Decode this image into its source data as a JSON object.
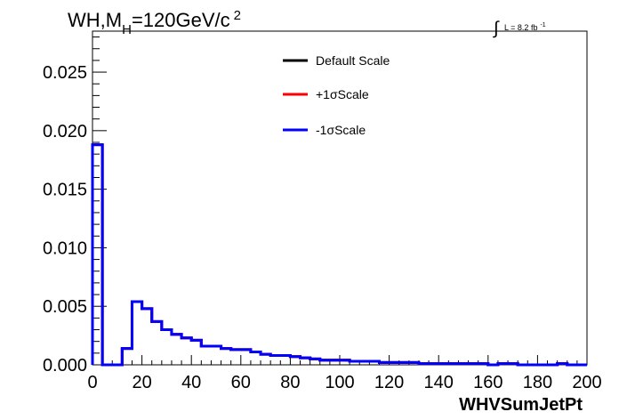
{
  "chart_data": {
    "type": "line",
    "title_parts": {
      "main": "WH,M",
      "sub": "H",
      "rest": "=120GeV/c",
      "sup": "2"
    },
    "lumi_label": {
      "integral": "∫",
      "text": "L = 8.2 fb",
      "sup": "-1"
    },
    "xlabel": "WHVSumJetPt",
    "ylabel": "",
    "xlim": [
      0,
      200
    ],
    "ylim": [
      0,
      0.0285
    ],
    "x_ticks": [
      {
        "value": 0,
        "label": "0"
      },
      {
        "value": 20,
        "label": "20"
      },
      {
        "value": 40,
        "label": "40"
      },
      {
        "value": 60,
        "label": "60"
      },
      {
        "value": 80,
        "label": "80"
      },
      {
        "value": 100,
        "label": "100"
      },
      {
        "value": 120,
        "label": "120"
      },
      {
        "value": 140,
        "label": "140"
      },
      {
        "value": 160,
        "label": "160"
      },
      {
        "value": 180,
        "label": "180"
      },
      {
        "value": 200,
        "label": "200"
      }
    ],
    "y_ticks": [
      {
        "value": 0.0,
        "label": "0.000"
      },
      {
        "value": 0.005,
        "label": "0.005"
      },
      {
        "value": 0.01,
        "label": "0.010"
      },
      {
        "value": 0.015,
        "label": "0.015"
      },
      {
        "value": 0.02,
        "label": "0.020"
      },
      {
        "value": 0.025,
        "label": "0.025"
      }
    ],
    "grid": false,
    "legend_position": "top-center",
    "bin_edges": [
      0,
      4,
      8,
      12,
      16,
      20,
      24,
      28,
      32,
      36,
      40,
      44,
      48,
      52,
      56,
      60,
      64,
      68,
      72,
      76,
      80,
      84,
      88,
      92,
      96,
      100,
      104,
      108,
      112,
      116,
      120,
      124,
      128,
      132,
      136,
      140,
      144,
      148,
      152,
      156,
      160,
      164,
      168,
      172,
      176,
      180,
      184,
      188,
      192,
      196,
      200
    ],
    "series": [
      {
        "name": "Default Scale",
        "color": "#000000",
        "values": [
          0.0188,
          0.0,
          0.0,
          0.0014,
          0.0054,
          0.0048,
          0.0037,
          0.003,
          0.0026,
          0.0023,
          0.0021,
          0.0016,
          0.0016,
          0.0014,
          0.0013,
          0.0013,
          0.0011,
          0.0009,
          0.0008,
          0.0008,
          0.0007,
          0.0006,
          0.0005,
          0.0004,
          0.0004,
          0.0004,
          0.0003,
          0.0003,
          0.0003,
          0.0002,
          0.0002,
          0.0002,
          0.0002,
          0.0001,
          0.0001,
          0.0001,
          0.0001,
          0.0001,
          0.0001,
          0.0001,
          0.0,
          0.0001,
          0.0001,
          0.0,
          0.0,
          0.0,
          0.0,
          0.0001,
          0.0,
          0.0
        ]
      },
      {
        "name": "+1σScale",
        "color": "#ff0000",
        "values": [
          0.0188,
          0.0,
          0.0,
          0.0014,
          0.0054,
          0.0048,
          0.0037,
          0.003,
          0.0026,
          0.0023,
          0.0021,
          0.0016,
          0.0016,
          0.0014,
          0.0013,
          0.0013,
          0.0011,
          0.0009,
          0.0008,
          0.0008,
          0.0007,
          0.0006,
          0.0005,
          0.0004,
          0.0004,
          0.0004,
          0.0003,
          0.0003,
          0.0003,
          0.0002,
          0.0002,
          0.0002,
          0.0002,
          0.0001,
          0.0001,
          0.0001,
          0.0001,
          0.0001,
          0.0001,
          0.0001,
          0.0,
          0.0001,
          0.0001,
          0.0,
          0.0,
          0.0,
          0.0,
          0.0001,
          0.0,
          0.0
        ]
      },
      {
        "name": "-1σScale",
        "color": "#0000ff",
        "values": [
          0.0188,
          0.0,
          0.0,
          0.0014,
          0.0054,
          0.0048,
          0.0037,
          0.003,
          0.0026,
          0.0023,
          0.0021,
          0.0016,
          0.0016,
          0.0014,
          0.0013,
          0.0013,
          0.0011,
          0.0009,
          0.0008,
          0.0008,
          0.0007,
          0.0006,
          0.0005,
          0.0004,
          0.0004,
          0.0004,
          0.0003,
          0.0003,
          0.0003,
          0.0002,
          0.0002,
          0.0002,
          0.0002,
          0.0001,
          0.0001,
          0.0001,
          0.0001,
          0.0001,
          0.0001,
          0.0001,
          0.0,
          0.0001,
          0.0001,
          0.0,
          0.0,
          0.0,
          0.0,
          0.0001,
          0.0,
          0.0
        ]
      }
    ]
  }
}
